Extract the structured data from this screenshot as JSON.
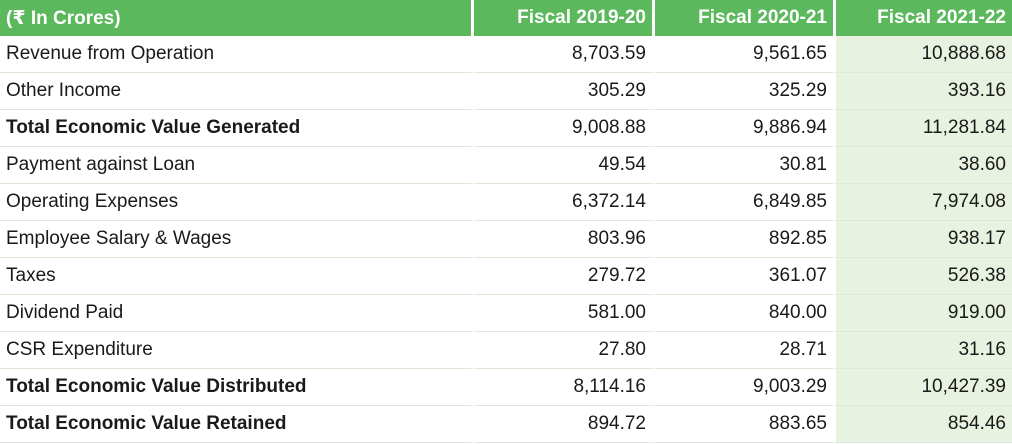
{
  "header": {
    "unit_label": "(₹ In Crores)",
    "columns": [
      "Fiscal 2019-20",
      "Fiscal 2020-21",
      "Fiscal 2021-22"
    ]
  },
  "rows": [
    {
      "label": "Revenue from Operation",
      "bold": false,
      "values": [
        "8,703.59",
        "9,561.65",
        "10,888.68"
      ]
    },
    {
      "label": "Other Income",
      "bold": false,
      "values": [
        "305.29",
        "325.29",
        "393.16"
      ]
    },
    {
      "label": "Total Economic Value Generated",
      "bold": true,
      "values": [
        "9,008.88",
        "9,886.94",
        "11,281.84"
      ]
    },
    {
      "label": "Payment against Loan",
      "bold": false,
      "values": [
        "49.54",
        "30.81",
        "38.60"
      ]
    },
    {
      "label": "Operating Expenses",
      "bold": false,
      "values": [
        "6,372.14",
        "6,849.85",
        "7,974.08"
      ]
    },
    {
      "label": "Employee Salary & Wages",
      "bold": false,
      "values": [
        "803.96",
        "892.85",
        "938.17"
      ]
    },
    {
      "label": "Taxes",
      "bold": false,
      "values": [
        "279.72",
        "361.07",
        "526.38"
      ]
    },
    {
      "label": "Dividend Paid",
      "bold": false,
      "values": [
        "581.00",
        "840.00",
        "919.00"
      ]
    },
    {
      "label": "CSR Expenditure",
      "bold": false,
      "values": [
        "27.80",
        "28.71",
        "31.16"
      ]
    },
    {
      "label": "Total Economic Value Distributed",
      "bold": true,
      "values": [
        "8,114.16",
        "9,003.29",
        "10,427.39"
      ]
    },
    {
      "label": "Total Economic Value Retained",
      "bold": true,
      "values": [
        "894.72",
        "883.65",
        "854.46"
      ]
    }
  ],
  "colors": {
    "header_bg": "#5cb85c",
    "highlight_col_bg": "#e8f2e0"
  }
}
